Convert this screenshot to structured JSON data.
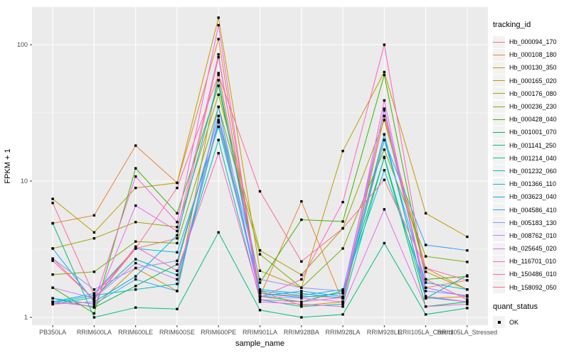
{
  "figure": {
    "background": "#FFFFFF",
    "panel_background": "#EBEBEB",
    "gridline_color": "#FFFFFF",
    "tick_label_color": "#4D4D4D",
    "axis_title_color": "#000000",
    "point_color": "#000000",
    "legend_key_background": "#F2F2F2"
  },
  "chart_data": {
    "type": "line",
    "title": "",
    "xlabel": "sample_name",
    "ylabel": "FPKM + 1",
    "y_scale": "log10",
    "y_ticks": [
      1,
      10,
      100
    ],
    "y_minor_ticks": [
      3.162,
      31.623
    ],
    "ylim": [
      1,
      188
    ],
    "grid": true,
    "legend_position": "right",
    "legend_title": "tracking_id",
    "categories": [
      "PB350LA",
      "RRIM600LA",
      "RRIM600LE",
      "RRIM600SE",
      "RRIM600PE",
      "RRIM901LA",
      "RRIM928BA",
      "RRIM928LA",
      "RRIM928LE",
      "RRII105LA_Control",
      "RRII105LA_Stressed"
    ],
    "series": [
      {
        "name": "Hb_000094_170",
        "color": "#F8766D",
        "values": [
          2.7,
          1.35,
          3.2,
          3.8,
          81,
          1.5,
          1.43,
          1.4,
          30,
          1.65,
          1.87
        ]
      },
      {
        "name": "Hb_000108_180",
        "color": "#EA8331",
        "values": [
          4.9,
          5.6,
          18.2,
          9.7,
          110,
          1.43,
          7.1,
          1.3,
          30,
          2.3,
          1.6
        ]
      },
      {
        "name": "Hb_000130_350",
        "color": "#D89000",
        "values": [
          1.3,
          1.2,
          2.3,
          1.56,
          62,
          1.56,
          1.22,
          1.3,
          22,
          1.38,
          1.42
        ]
      },
      {
        "name": "Hb_000165_020",
        "color": "#C09B00",
        "values": [
          7.4,
          4.2,
          8.9,
          9.7,
          158,
          2.2,
          1.65,
          16.6,
          63,
          5.8,
          3.9
        ]
      },
      {
        "name": "Hb_000176_080",
        "color": "#A3A500",
        "values": [
          3.2,
          3.8,
          5.0,
          4.6,
          43,
          3.1,
          2.05,
          4.5,
          28,
          2.16,
          1.6
        ]
      },
      {
        "name": "Hb_000236_230",
        "color": "#7CAE00",
        "values": [
          2.06,
          2.16,
          3.6,
          3.5,
          35,
          2.9,
          1.65,
          3.2,
          17,
          2.8,
          2.55
        ]
      },
      {
        "name": "Hb_000428_040",
        "color": "#39B600",
        "values": [
          1.65,
          1.07,
          12.4,
          5.8,
          50,
          1.8,
          5.2,
          5.05,
          60,
          1.9,
          2.0
        ]
      },
      {
        "name": "Hb_001001_070",
        "color": "#00BB4E",
        "values": [
          1.38,
          1.18,
          1.7,
          2.45,
          30,
          1.43,
          1.3,
          1.56,
          14.8,
          1.2,
          1.3
        ]
      },
      {
        "name": "Hb_001141_250",
        "color": "#00BF7D",
        "values": [
          4.9,
          1.0,
          1.18,
          1.15,
          4.2,
          1.13,
          1.0,
          1.05,
          3.5,
          1.05,
          1.17
        ]
      },
      {
        "name": "Hb_001214_040",
        "color": "#00C1A3",
        "values": [
          1.25,
          1.4,
          2.67,
          2.05,
          20,
          1.35,
          1.2,
          1.25,
          15,
          1.38,
          2.03
        ]
      },
      {
        "name": "Hb_001232_060",
        "color": "#00BFC4",
        "values": [
          1.28,
          1.45,
          1.6,
          1.76,
          27,
          1.56,
          1.45,
          1.6,
          12,
          1.65,
          1.42
        ]
      },
      {
        "name": "Hb_001366_110",
        "color": "#00BAE0",
        "values": [
          1.3,
          1.5,
          3.2,
          3.0,
          25,
          1.6,
          1.5,
          1.38,
          20,
          1.8,
          1.6
        ]
      },
      {
        "name": "Hb_003623_040",
        "color": "#00B0F6",
        "values": [
          3.2,
          1.3,
          2.0,
          4.0,
          55,
          1.5,
          1.4,
          1.5,
          22,
          1.4,
          1.3
        ]
      },
      {
        "name": "Hb_004586_410",
        "color": "#35A2FF",
        "values": [
          1.38,
          1.25,
          1.9,
          1.56,
          35,
          1.43,
          1.56,
          1.42,
          20,
          3.4,
          3.1
        ]
      },
      {
        "name": "Hb_005183_130",
        "color": "#9590FF",
        "values": [
          2.7,
          1.6,
          2.3,
          2.6,
          30,
          1.9,
          1.65,
          1.56,
          33,
          1.56,
          1.45
        ]
      },
      {
        "name": "Hb_008762_010",
        "color": "#C77CFF",
        "values": [
          1.65,
          1.38,
          2.5,
          1.9,
          28,
          1.43,
          1.38,
          1.3,
          34,
          1.65,
          1.42
        ]
      },
      {
        "name": "Hb_025645_020",
        "color": "#E76BF3",
        "values": [
          1.3,
          1.2,
          6.6,
          4.3,
          85,
          1.3,
          1.25,
          1.2,
          6.2,
          1.2,
          1.25
        ]
      },
      {
        "name": "Hb_116701_010",
        "color": "#FA62DB",
        "values": [
          1.25,
          1.3,
          10.8,
          5.0,
          139,
          1.35,
          1.3,
          1.4,
          39,
          1.43,
          1.3
        ]
      },
      {
        "name": "Hb_150486_010",
        "color": "#FF62BC",
        "values": [
          2.6,
          1.35,
          3.3,
          2.2,
          16,
          1.4,
          1.9,
          7.0,
          100,
          1.9,
          1.35
        ]
      },
      {
        "name": "Hb_158092_050",
        "color": "#FF6A98",
        "values": [
          6.9,
          1.45,
          3.2,
          8.9,
          60,
          8.4,
          2.57,
          4.5,
          10.2,
          2.3,
          1.87
        ]
      }
    ],
    "quant_status": {
      "title": "quant_status",
      "items": [
        {
          "label": "OK",
          "marker": "square"
        }
      ]
    }
  }
}
